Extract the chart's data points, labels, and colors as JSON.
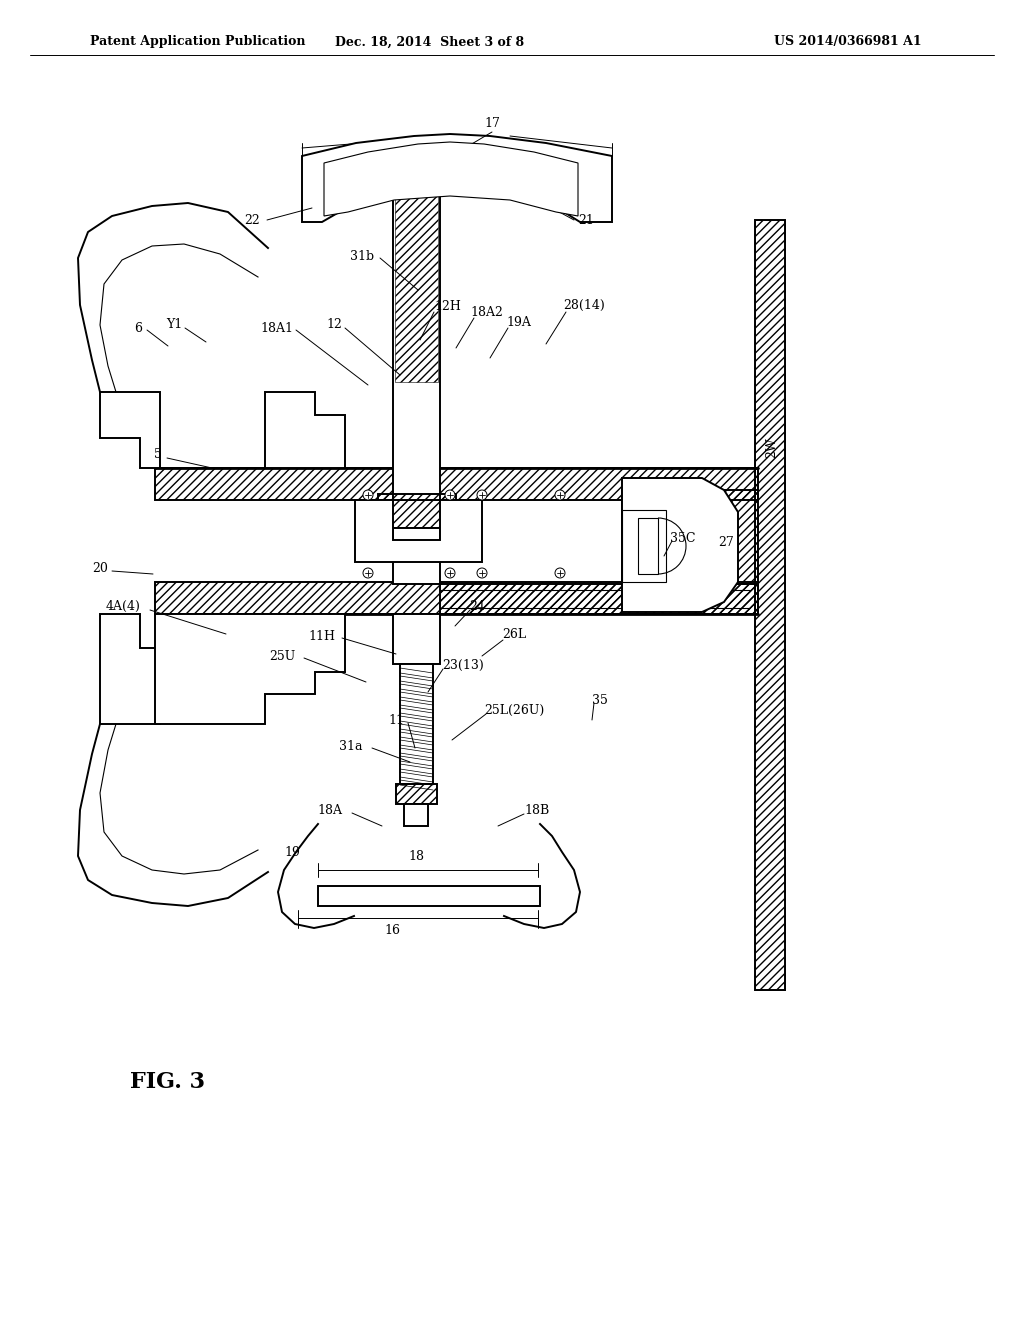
{
  "background_color": "#ffffff",
  "line_color": "#000000",
  "header_left": "Patent Application Publication",
  "header_middle": "Dec. 18, 2014  Sheet 3 of 8",
  "header_right": "US 2014/0366981 A1",
  "figure_label": "FIG. 3",
  "lw_main": 1.4,
  "lw_thin": 0.8,
  "lw_thick": 2.0,
  "label_fontsize": 9,
  "header_fontsize": 9
}
